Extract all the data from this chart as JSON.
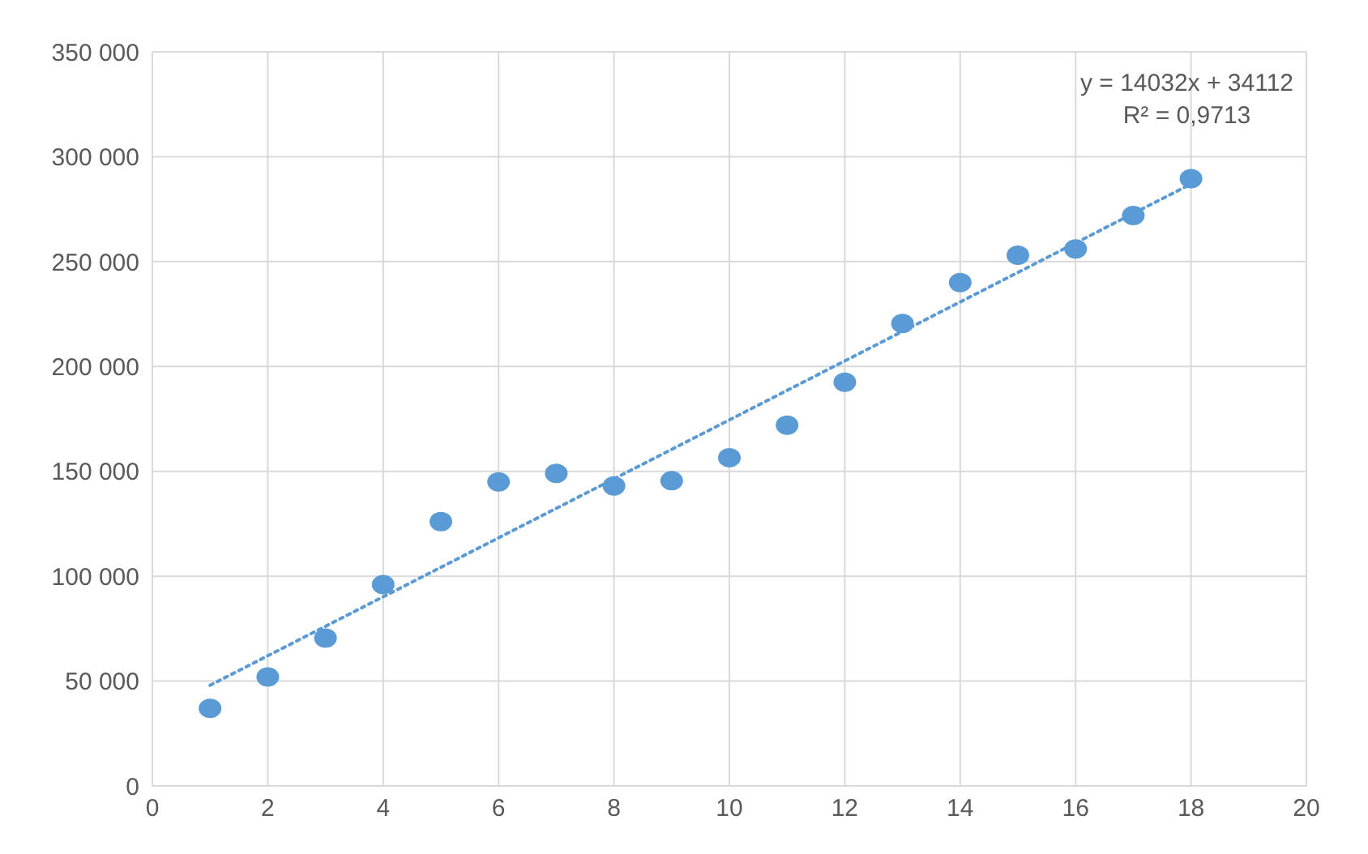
{
  "chart_data": {
    "type": "scatter",
    "xlim": [
      0,
      20
    ],
    "xticks": [
      0,
      2,
      4,
      6,
      8,
      10,
      12,
      14,
      16,
      18,
      20
    ],
    "ylim": [
      0,
      350000
    ],
    "yticks": [
      0,
      {
        "value": 50000,
        "label": "50 000"
      },
      {
        "value": 100000,
        "label": "100 000"
      },
      {
        "value": 150000,
        "label": "150 000"
      },
      {
        "value": 200000,
        "label": "200 000"
      },
      {
        "value": 250000,
        "label": "250 000"
      },
      {
        "value": 300000,
        "label": "300 000"
      },
      {
        "value": 350000,
        "label": "350 000"
      }
    ],
    "grid": true,
    "marker": "circle",
    "annotations": [
      "y = 14032x + 34112",
      "R² = 0,9713"
    ],
    "series": [
      {
        "color": "#5b9bd5",
        "x": [
          1,
          2,
          3,
          4,
          5,
          6,
          7,
          8,
          9,
          10,
          11,
          12,
          13,
          14,
          15,
          16,
          17,
          18
        ],
        "values": [
          37000,
          52000,
          70500,
          96000,
          126000,
          145000,
          149000,
          143000,
          145500,
          156500,
          172000,
          192500,
          220500,
          240000,
          253000,
          256000,
          272000,
          289500
        ]
      },
      {
        "type": "line",
        "color": "#5b9bd5",
        "line_style": "dotted",
        "marker": "none",
        "x": [
          1,
          18
        ],
        "values": [
          48000,
          287000
        ]
      }
    ]
  }
}
